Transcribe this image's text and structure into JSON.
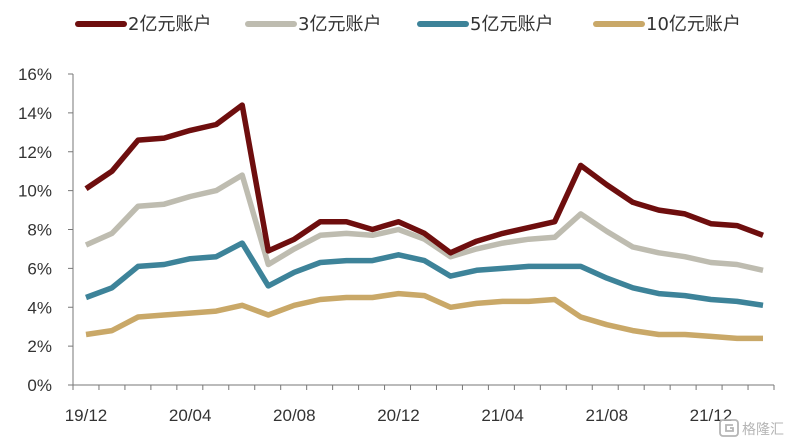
{
  "chart_data": {
    "type": "line",
    "title": "",
    "xlabel": "",
    "ylabel": "",
    "ylim": [
      0,
      16
    ],
    "y_ticks": [
      "0%",
      "2%",
      "4%",
      "6%",
      "8%",
      "10%",
      "12%",
      "14%",
      "16%"
    ],
    "x_tick_labels": [
      "19/12",
      "20/04",
      "20/08",
      "20/12",
      "21/04",
      "21/08",
      "21/12"
    ],
    "categories": [
      "19/12",
      "20/01",
      "20/02",
      "20/03",
      "20/04",
      "20/05",
      "20/06",
      "20/07",
      "20/08",
      "20/09",
      "20/10",
      "20/11",
      "20/12",
      "21/01",
      "21/02",
      "21/03",
      "21/04",
      "21/05",
      "21/06",
      "21/07",
      "21/08",
      "21/09",
      "21/10",
      "21/11",
      "21/12",
      "22/01",
      "22/02"
    ],
    "unit": "%",
    "grid": false,
    "legend_position": "top",
    "series": [
      {
        "name": "2亿元账户",
        "color": "#6e0e0e",
        "values": [
          10.1,
          11.0,
          12.6,
          12.7,
          13.1,
          13.4,
          14.4,
          6.9,
          7.5,
          8.4,
          8.4,
          8.0,
          8.4,
          7.8,
          6.8,
          7.4,
          7.8,
          8.1,
          8.4,
          11.3,
          10.3,
          9.4,
          9.0,
          8.8,
          8.3,
          8.2,
          7.7
        ]
      },
      {
        "name": "3亿元账户",
        "color": "#bebcb0",
        "values": [
          7.2,
          7.8,
          9.2,
          9.3,
          9.7,
          10.0,
          10.8,
          6.2,
          7.0,
          7.7,
          7.8,
          7.7,
          8.0,
          7.5,
          6.6,
          7.0,
          7.3,
          7.5,
          7.6,
          8.8,
          7.9,
          7.1,
          6.8,
          6.6,
          6.3,
          6.2,
          5.9
        ]
      },
      {
        "name": "5亿元账户",
        "color": "#3d8399",
        "values": [
          4.5,
          5.0,
          6.1,
          6.2,
          6.5,
          6.6,
          7.3,
          5.1,
          5.8,
          6.3,
          6.4,
          6.4,
          6.7,
          6.4,
          5.6,
          5.9,
          6.0,
          6.1,
          6.1,
          6.1,
          5.5,
          5.0,
          4.7,
          4.6,
          4.4,
          4.3,
          4.1
        ]
      },
      {
        "name": "10亿元账户",
        "color": "#c9a868",
        "values": [
          2.6,
          2.8,
          3.5,
          3.6,
          3.7,
          3.8,
          4.1,
          3.6,
          4.1,
          4.4,
          4.5,
          4.5,
          4.7,
          4.6,
          4.0,
          4.2,
          4.3,
          4.3,
          4.4,
          3.5,
          3.1,
          2.8,
          2.6,
          2.6,
          2.5,
          2.4,
          2.4
        ]
      }
    ]
  },
  "watermark": {
    "text": "格隆汇",
    "icon": "g-logo-icon"
  }
}
